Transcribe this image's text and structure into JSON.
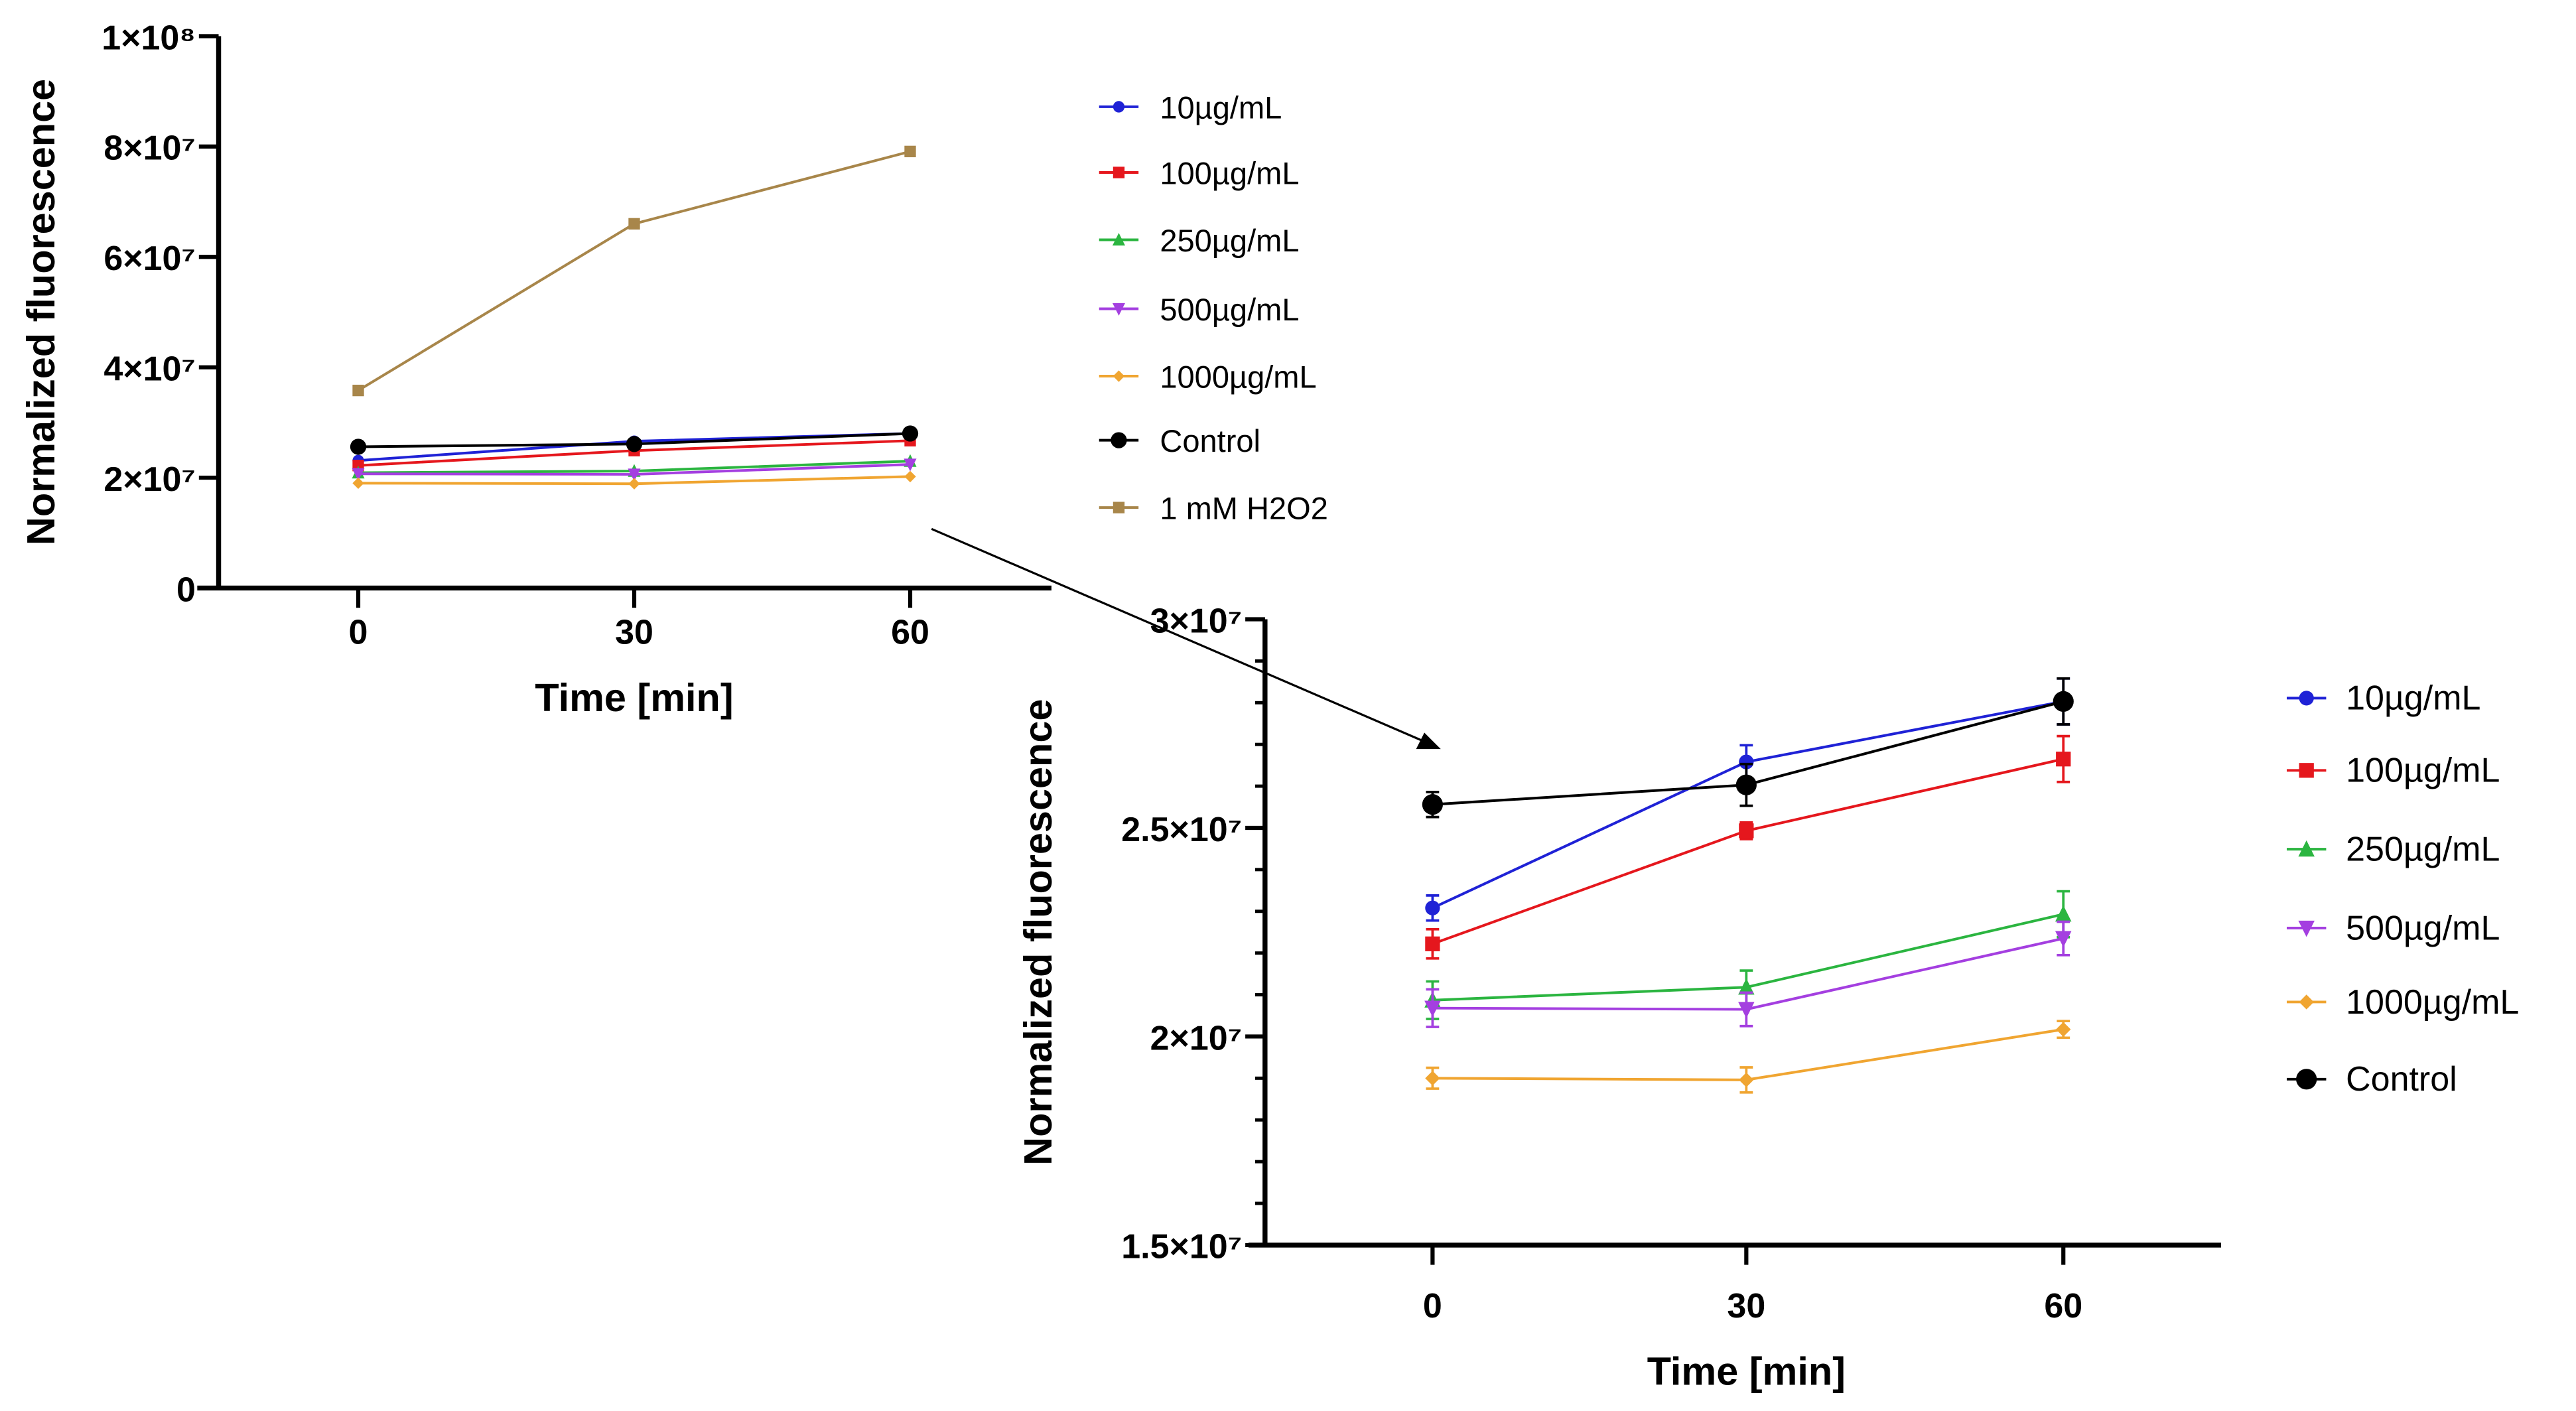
{
  "chart_data": [
    {
      "type": "line",
      "title": "",
      "xlabel": "Time [min]",
      "ylabel": "Normalized fluorescence",
      "x": [
        0,
        30,
        60
      ],
      "x_tick_labels": [
        "0",
        "30",
        "60"
      ],
      "ylim": [
        0,
        100000000
      ],
      "y_ticks": [
        0,
        20000000,
        40000000,
        60000000,
        80000000,
        100000000
      ],
      "y_tick_labels": [
        "0",
        "2×10⁷",
        "4×10⁷",
        "6×10⁷",
        "8×10⁷",
        "1×10⁸"
      ],
      "grid": false,
      "legend_placement": "right",
      "series": [
        {
          "name": "10µg/mL",
          "color": "#1f22d6",
          "marker": "circle",
          "values": [
            23100000,
            26600000,
            28000000
          ]
        },
        {
          "name": "100µg/mL",
          "color": "#e5171d",
          "marker": "square",
          "values": [
            22200000,
            24900000,
            26700000
          ]
        },
        {
          "name": "250µg/mL",
          "color": "#2bb540",
          "marker": "triangle-up",
          "values": [
            20900000,
            21200000,
            23000000
          ]
        },
        {
          "name": "500µg/mL",
          "color": "#a43fe0",
          "marker": "triangle-down",
          "values": [
            20700000,
            20600000,
            22400000
          ]
        },
        {
          "name": "1000µg/mL",
          "color": "#f0a531",
          "marker": "diamond",
          "values": [
            19000000,
            18900000,
            20200000
          ]
        },
        {
          "name": "Control",
          "color": "#000000",
          "marker": "circle-large",
          "values": [
            25600000,
            26100000,
            28000000
          ]
        },
        {
          "name": "1 mM H2O2",
          "color": "#a8864a",
          "marker": "square",
          "values": [
            35800000,
            66000000,
            79100000
          ]
        }
      ]
    },
    {
      "type": "line",
      "title": "",
      "xlabel": "Time [min]",
      "ylabel": "Normalized fluorescence",
      "x": [
        0,
        30,
        60
      ],
      "x_tick_labels": [
        "0",
        "30",
        "60"
      ],
      "ylim": [
        15000000,
        30000000
      ],
      "y_ticks": [
        15000000,
        20000000,
        25000000,
        30000000
      ],
      "y_tick_labels": [
        "1.5×10⁷",
        "2×10⁷",
        "2.5×10⁷",
        "3×10⁷"
      ],
      "grid": false,
      "legend_placement": "right",
      "series": [
        {
          "name": "10µg/mL",
          "color": "#1f22d6",
          "marker": "circle",
          "values": [
            23080000,
            26580000,
            28030000
          ],
          "errors": [
            300000,
            400000,
            550000
          ]
        },
        {
          "name": "100µg/mL",
          "color": "#e5171d",
          "marker": "square",
          "values": [
            22220000,
            24930000,
            26650000
          ],
          "errors": [
            350000,
            200000,
            550000
          ]
        },
        {
          "name": "250µg/mL",
          "color": "#2bb540",
          "marker": "triangle-up",
          "values": [
            20870000,
            21180000,
            22930000
          ],
          "errors": [
            450000,
            400000,
            550000
          ]
        },
        {
          "name": "500µg/mL",
          "color": "#a43fe0",
          "marker": "triangle-down",
          "values": [
            20680000,
            20650000,
            22350000
          ],
          "errors": [
            450000,
            400000,
            400000
          ]
        },
        {
          "name": "1000µg/mL",
          "color": "#f0a531",
          "marker": "diamond",
          "values": [
            19000000,
            18960000,
            20170000
          ],
          "errors": [
            250000,
            300000,
            200000
          ]
        },
        {
          "name": "Control",
          "color": "#000000",
          "marker": "circle-large",
          "values": [
            25560000,
            26030000,
            28030000
          ],
          "errors": [
            300000,
            500000,
            550000
          ]
        }
      ]
    }
  ]
}
